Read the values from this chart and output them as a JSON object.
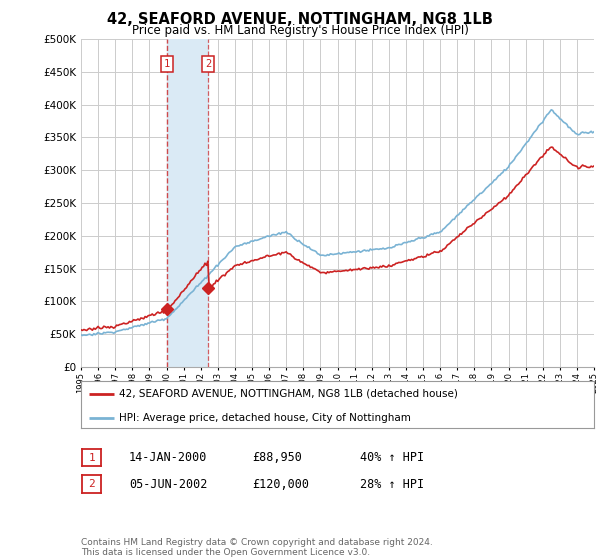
{
  "title": "42, SEAFORD AVENUE, NOTTINGHAM, NG8 1LB",
  "subtitle": "Price paid vs. HM Land Registry's House Price Index (HPI)",
  "ylim": [
    0,
    500000
  ],
  "yticks": [
    0,
    50000,
    100000,
    150000,
    200000,
    250000,
    300000,
    350000,
    400000,
    450000,
    500000
  ],
  "ytick_labels": [
    "£0",
    "£50K",
    "£100K",
    "£150K",
    "£200K",
    "£250K",
    "£300K",
    "£350K",
    "£400K",
    "£450K",
    "£500K"
  ],
  "sale1_date": 2000.04,
  "sale1_price": 88950,
  "sale2_date": 2002.43,
  "sale2_price": 120000,
  "hpi_line_color": "#7ab3d4",
  "price_line_color": "#cc2222",
  "shade_color": "#daeaf5",
  "legend1_text": "42, SEAFORD AVENUE, NOTTINGHAM, NG8 1LB (detached house)",
  "legend2_text": "HPI: Average price, detached house, City of Nottingham",
  "table_row1": [
    "1",
    "14-JAN-2000",
    "£88,950",
    "40% ↑ HPI"
  ],
  "table_row2": [
    "2",
    "05-JUN-2002",
    "£120,000",
    "28% ↑ HPI"
  ],
  "footnote": "Contains HM Land Registry data © Crown copyright and database right 2024.\nThis data is licensed under the Open Government Licence v3.0.",
  "background_color": "#ffffff",
  "grid_color": "#cccccc"
}
